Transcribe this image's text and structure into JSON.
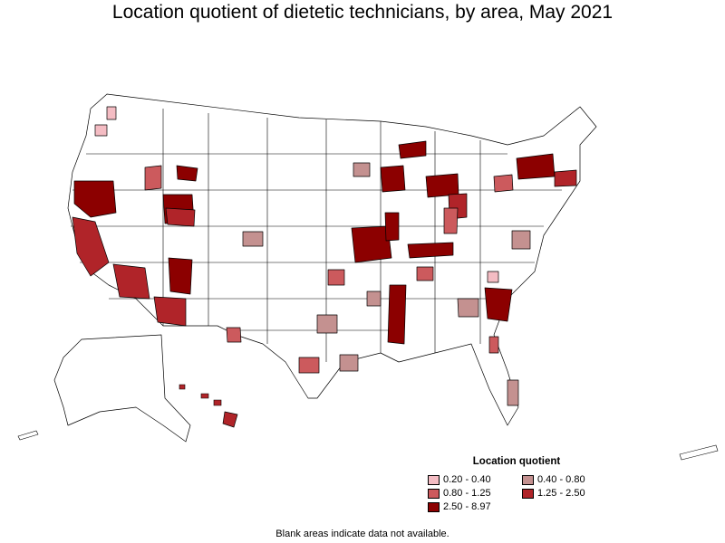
{
  "title": "Location quotient of dietetic technicians, by area, May 2021",
  "legend": {
    "title": "Location quotient",
    "items": [
      {
        "label": "0.20 - 0.40",
        "color": "#f4bcc3"
      },
      {
        "label": "0.40 - 0.80",
        "color": "#c49190"
      },
      {
        "label": "0.80 - 1.25",
        "color": "#cc5a5d"
      },
      {
        "label": "1.25 - 2.50",
        "color": "#b02429"
      },
      {
        "label": "2.50 - 8.97",
        "color": "#8c0000"
      }
    ]
  },
  "footnote": "Blank areas indicate data not available.",
  "colors": {
    "blank": "#ffffff",
    "border": "#000000"
  }
}
